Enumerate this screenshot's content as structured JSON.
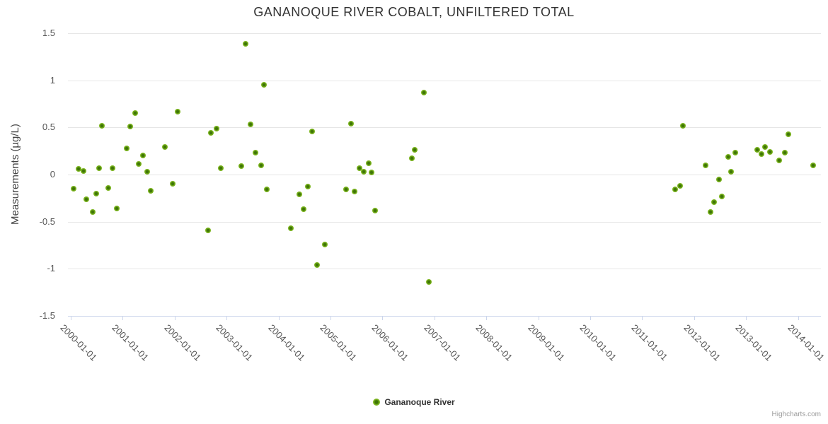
{
  "chart": {
    "title": "GANANOQUE RIVER COBALT, UNFILTERED TOTAL",
    "y_axis_title": "Measurements (µg/L)",
    "legend": {
      "label": "Gananoque River"
    },
    "credits": "Highcharts.com",
    "colors": {
      "marker_outer": "#7cb51e",
      "marker_core": "#3e7506",
      "gridline": "#e6e6e6",
      "axis_line": "#ccd6eb",
      "title_text": "#333333",
      "axis_title_text": "#444444",
      "label_text": "#555555",
      "legend_text": "#333333",
      "credits_text": "#9a9a9a"
    }
  },
  "chart_data": {
    "type": "scatter",
    "title": "GANANOQUE RIVER COBALT, UNFILTERED TOTAL",
    "xlabel": "",
    "ylabel": "Measurements (µg/L)",
    "x_unit": "decimal_year",
    "xlim_years": [
      1999.945,
      2014.441
    ],
    "ylim": [
      -1.5,
      1.5
    ],
    "y_tick_values": [
      1.5,
      1,
      0.5,
      0,
      -0.5,
      -1,
      -1.5
    ],
    "y_tick_labels": [
      "1.5",
      "1",
      "0.5",
      "0",
      "-0.5",
      "-1",
      "-1.5"
    ],
    "x_tick_years": [
      2000,
      2001,
      2002,
      2003,
      2004,
      2005,
      2006,
      2007,
      2008,
      2009,
      2010,
      2011,
      2012,
      2013,
      2014
    ],
    "x_tick_labels": [
      "2000-01-01",
      "2001-01-01",
      "2002-01-01",
      "2003-01-01",
      "2004-01-01",
      "2005-01-01",
      "2006-01-01",
      "2007-01-01",
      "2008-01-01",
      "2009-01-01",
      "2010-01-01",
      "2011-01-01",
      "2012-01-01",
      "2013-01-01",
      "2014-01-01"
    ],
    "grid": "horizontal-only",
    "legend_position": "bottom-center",
    "series": [
      {
        "name": "Gananoque River",
        "marker_color": "#7cb51e",
        "points": [
          [
            2000.06,
            -0.15
          ],
          [
            2000.15,
            0.06
          ],
          [
            2000.25,
            0.04
          ],
          [
            2000.3,
            -0.26
          ],
          [
            2000.42,
            -0.4
          ],
          [
            2000.49,
            -0.2
          ],
          [
            2000.54,
            0.07
          ],
          [
            2000.6,
            0.52
          ],
          [
            2000.72,
            -0.14
          ],
          [
            2000.8,
            0.07
          ],
          [
            2000.88,
            -0.36
          ],
          [
            2001.07,
            0.28
          ],
          [
            2001.14,
            0.51
          ],
          [
            2001.24,
            0.65
          ],
          [
            2001.31,
            0.11
          ],
          [
            2001.39,
            0.2
          ],
          [
            2001.47,
            0.03
          ],
          [
            2001.54,
            -0.17
          ],
          [
            2001.81,
            0.29
          ],
          [
            2001.96,
            -0.1
          ],
          [
            2002.06,
            0.67
          ],
          [
            2002.64,
            -0.59
          ],
          [
            2002.7,
            0.44
          ],
          [
            2002.81,
            0.49
          ],
          [
            2002.89,
            0.07
          ],
          [
            2003.28,
            0.09
          ],
          [
            2003.37,
            1.39
          ],
          [
            2003.46,
            0.53
          ],
          [
            2003.56,
            0.23
          ],
          [
            2003.66,
            0.1
          ],
          [
            2003.72,
            0.95
          ],
          [
            2003.78,
            -0.16
          ],
          [
            2004.23,
            -0.57
          ],
          [
            2004.4,
            -0.21
          ],
          [
            2004.48,
            -0.37
          ],
          [
            2004.56,
            -0.13
          ],
          [
            2004.64,
            0.46
          ],
          [
            2004.74,
            -0.96
          ],
          [
            2004.89,
            -0.74
          ],
          [
            2005.3,
            -0.16
          ],
          [
            2005.39,
            0.54
          ],
          [
            2005.46,
            -0.18
          ],
          [
            2005.56,
            0.07
          ],
          [
            2005.64,
            0.03
          ],
          [
            2005.73,
            0.12
          ],
          [
            2005.79,
            0.02
          ],
          [
            2005.86,
            -0.38
          ],
          [
            2006.57,
            0.17
          ],
          [
            2006.62,
            0.26
          ],
          [
            2006.8,
            0.87
          ],
          [
            2006.9,
            -1.14
          ],
          [
            2011.64,
            -0.16
          ],
          [
            2011.73,
            -0.12
          ],
          [
            2011.79,
            0.52
          ],
          [
            2012.22,
            0.1
          ],
          [
            2012.31,
            -0.4
          ],
          [
            2012.38,
            -0.29
          ],
          [
            2012.48,
            -0.05
          ],
          [
            2012.54,
            -0.23
          ],
          [
            2012.65,
            0.19
          ],
          [
            2012.71,
            0.03
          ],
          [
            2012.79,
            0.23
          ],
          [
            2013.22,
            0.26
          ],
          [
            2013.3,
            0.22
          ],
          [
            2013.37,
            0.29
          ],
          [
            2013.46,
            0.24
          ],
          [
            2013.64,
            0.15
          ],
          [
            2013.74,
            0.23
          ],
          [
            2013.81,
            0.43
          ],
          [
            2014.29,
            0.1
          ]
        ]
      }
    ]
  }
}
